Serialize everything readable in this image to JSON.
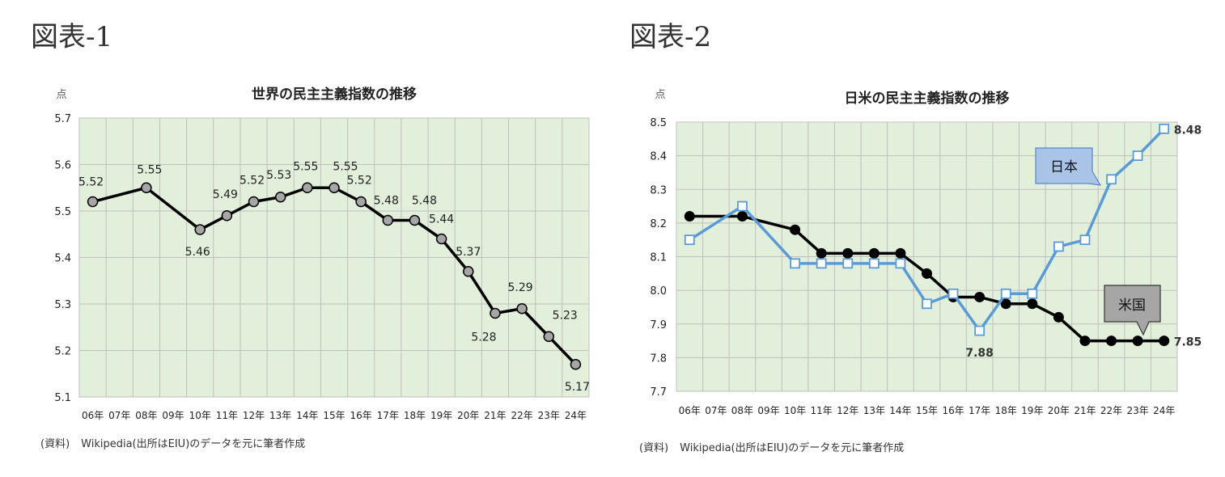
{
  "figure1": {
    "label": "図表-1"
  },
  "figure2": {
    "label": "図表-2"
  },
  "source1": {
    "prefix": "(資料)",
    "text": "Wikipedia(出所はEIU)のデータを元に筆者作成"
  },
  "source2": {
    "prefix": "(資料)",
    "text": "Wikipedia(出所はEIU)のデータを元に筆者作成"
  },
  "chart_data": [
    {
      "type": "line",
      "title": "世界の民主主義指数の推移",
      "ylabel": "点",
      "xlabel": "",
      "ylim": [
        5.1,
        5.7
      ],
      "yticks": [
        "5.1",
        "5.2",
        "5.3",
        "5.4",
        "5.5",
        "5.6",
        "5.7"
      ],
      "categories": [
        "06年",
        "07年",
        "08年",
        "09年",
        "10年",
        "11年",
        "12年",
        "13年",
        "14年",
        "15年",
        "16年",
        "17年",
        "18年",
        "19年",
        "20年",
        "21年",
        "22年",
        "23年",
        "24年"
      ],
      "grid": "vertical and horizontal",
      "series": [
        {
          "name": "",
          "color": "#000000",
          "marker_color": "#a6a6a6",
          "points": [
            {
              "x": "06年",
              "y": 5.52,
              "label": "5.52"
            },
            {
              "x": "08年",
              "y": 5.55,
              "label": "5.55"
            },
            {
              "x": "10年",
              "y": 5.46,
              "label": "5.46"
            },
            {
              "x": "11年",
              "y": 5.49,
              "label": "5.49"
            },
            {
              "x": "12年",
              "y": 5.52,
              "label": "5.52"
            },
            {
              "x": "13年",
              "y": 5.53,
              "label": "5.53"
            },
            {
              "x": "14年",
              "y": 5.55,
              "label": "5.55"
            },
            {
              "x": "15年",
              "y": 5.55,
              "label": "5.55"
            },
            {
              "x": "16年",
              "y": 5.52,
              "label": "5.52"
            },
            {
              "x": "17年",
              "y": 5.48,
              "label": "5.48"
            },
            {
              "x": "18年",
              "y": 5.48,
              "label": "5.48"
            },
            {
              "x": "19年",
              "y": 5.44,
              "label": "5.44"
            },
            {
              "x": "20年",
              "y": 5.37,
              "label": "5.37"
            },
            {
              "x": "21年",
              "y": 5.28,
              "label": "5.28"
            },
            {
              "x": "22年",
              "y": 5.29,
              "label": "5.29"
            },
            {
              "x": "23年",
              "y": 5.23,
              "label": "5.23"
            },
            {
              "x": "24年",
              "y": 5.17,
              "label": "5.17"
            }
          ]
        }
      ]
    },
    {
      "type": "line",
      "title": "日米の民主主義指数の推移",
      "ylabel": "点",
      "xlabel": "",
      "ylim": [
        7.7,
        8.5
      ],
      "yticks": [
        "7.7",
        "7.8",
        "7.9",
        "8.0",
        "8.1",
        "8.2",
        "8.3",
        "8.4",
        "8.5"
      ],
      "categories": [
        "06年",
        "07年",
        "08年",
        "09年",
        "10年",
        "11年",
        "12年",
        "13年",
        "14年",
        "15年",
        "16年",
        "17年",
        "18年",
        "19年",
        "20年",
        "21年",
        "22年",
        "23年",
        "24年"
      ],
      "grid": "vertical and horizontal",
      "series": [
        {
          "name": "日本",
          "color": "#5b9bd5",
          "marker": "square-open",
          "points": [
            {
              "x": "06年",
              "y": 8.15
            },
            {
              "x": "08年",
              "y": 8.25
            },
            {
              "x": "10年",
              "y": 8.08
            },
            {
              "x": "11年",
              "y": 8.08
            },
            {
              "x": "12年",
              "y": 8.08
            },
            {
              "x": "13年",
              "y": 8.08
            },
            {
              "x": "14年",
              "y": 8.08
            },
            {
              "x": "15年",
              "y": 7.96
            },
            {
              "x": "16年",
              "y": 7.99
            },
            {
              "x": "17年",
              "y": 7.88,
              "label": "7.88"
            },
            {
              "x": "18年",
              "y": 7.99
            },
            {
              "x": "19年",
              "y": 7.99
            },
            {
              "x": "20年",
              "y": 8.13
            },
            {
              "x": "21年",
              "y": 8.15
            },
            {
              "x": "22年",
              "y": 8.33
            },
            {
              "x": "23年",
              "y": 8.4
            },
            {
              "x": "24年",
              "y": 8.48,
              "label": "8.48"
            }
          ]
        },
        {
          "name": "米国",
          "color": "#000000",
          "marker": "circle-filled",
          "points": [
            {
              "x": "06年",
              "y": 8.22
            },
            {
              "x": "08年",
              "y": 8.22
            },
            {
              "x": "10年",
              "y": 8.18
            },
            {
              "x": "11年",
              "y": 8.11
            },
            {
              "x": "12年",
              "y": 8.11
            },
            {
              "x": "13年",
              "y": 8.11
            },
            {
              "x": "14年",
              "y": 8.11
            },
            {
              "x": "15年",
              "y": 8.05
            },
            {
              "x": "16年",
              "y": 7.98
            },
            {
              "x": "17年",
              "y": 7.98
            },
            {
              "x": "18年",
              "y": 7.96
            },
            {
              "x": "19年",
              "y": 7.96
            },
            {
              "x": "20年",
              "y": 7.92
            },
            {
              "x": "21年",
              "y": 7.85
            },
            {
              "x": "22年",
              "y": 7.85
            },
            {
              "x": "23年",
              "y": 7.85
            },
            {
              "x": "24年",
              "y": 7.85,
              "label": "7.85"
            }
          ]
        }
      ],
      "callouts": [
        {
          "series": "日本",
          "fill": "#aac4e8",
          "stroke": "#4472c4"
        },
        {
          "series": "米国",
          "fill": "#a6a6a6",
          "stroke": "#333333"
        }
      ]
    }
  ]
}
